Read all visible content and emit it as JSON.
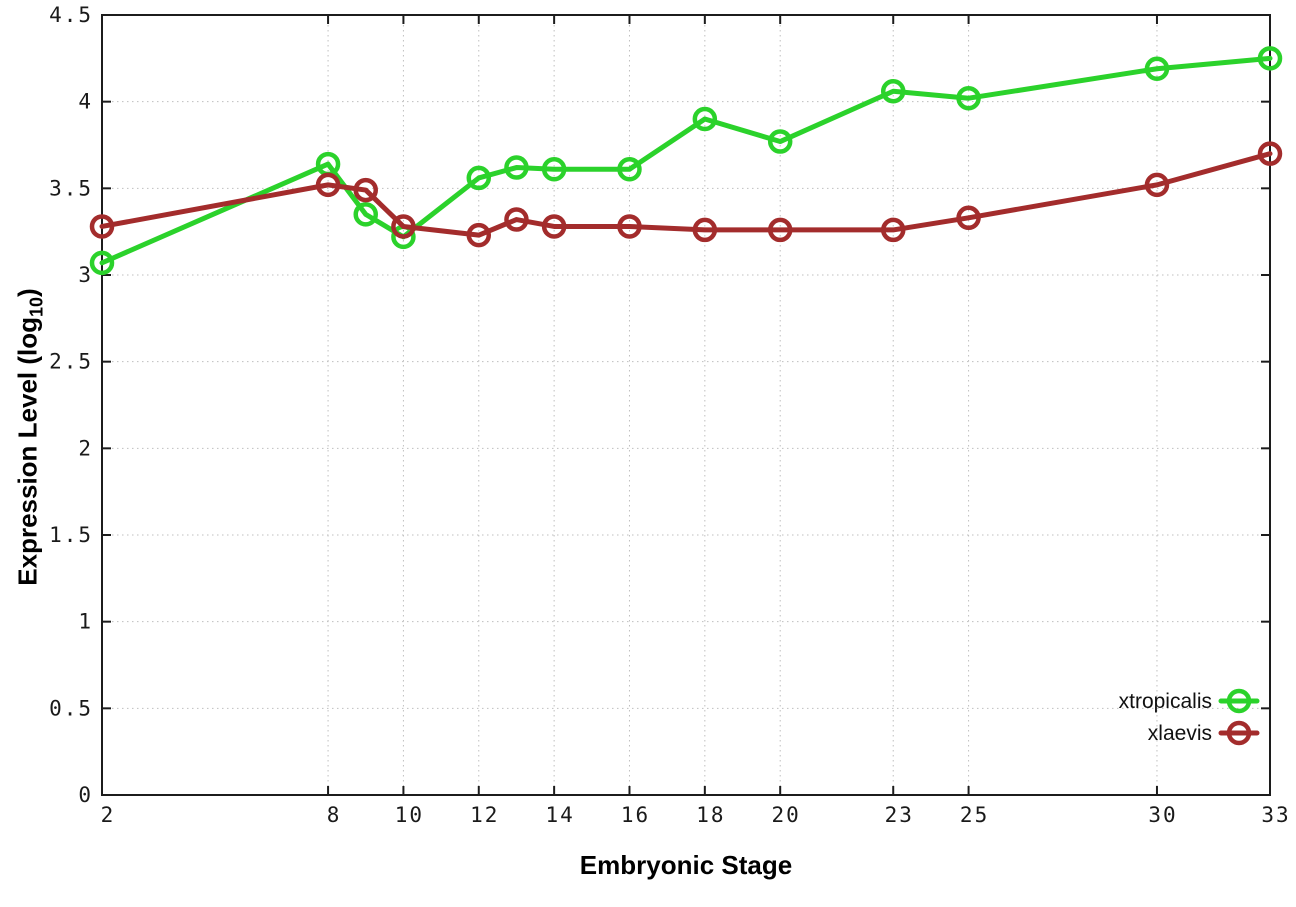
{
  "figure": {
    "xlabel": "Embryonic Stage",
    "ylabel_main": "Expression Level (log",
    "ylabel_sub": "10",
    "ylabel_end": ")"
  },
  "chart_data": {
    "type": "line",
    "title": "",
    "xlabel": "Embryonic Stage",
    "ylabel": "Expression Level (log10)",
    "x": [
      2,
      8,
      9,
      10,
      12,
      13,
      14,
      16,
      18,
      20,
      23,
      25,
      30,
      33
    ],
    "series": [
      {
        "name": "xtropicalis",
        "color": "#2bd22b",
        "marker": "open-circle",
        "values": [
          3.07,
          3.64,
          3.35,
          3.22,
          3.56,
          3.62,
          3.61,
          3.61,
          3.9,
          3.77,
          4.06,
          4.02,
          4.19,
          4.25
        ]
      },
      {
        "name": "xlaevis",
        "color": "#a32c2c",
        "marker": "open-circle",
        "values": [
          3.28,
          3.52,
          3.49,
          3.28,
          3.23,
          3.32,
          3.28,
          3.28,
          3.26,
          3.26,
          3.26,
          3.33,
          3.52,
          3.7
        ]
      }
    ],
    "x_ticks": [
      2,
      8,
      10,
      12,
      14,
      16,
      18,
      20,
      23,
      25,
      30,
      33
    ],
    "x_tick_labels": [
      "2",
      "8",
      "10",
      "12",
      "14",
      "16",
      "18",
      "20",
      "23",
      "25",
      "30",
      "33"
    ],
    "y_ticks": [
      0,
      0.5,
      1,
      1.5,
      2,
      2.5,
      3,
      3.5,
      4,
      4.5
    ],
    "y_tick_labels": [
      "0",
      "0.5",
      "1",
      "1.5",
      "2",
      "2.5",
      "3",
      "3.5",
      "4",
      "4.5"
    ],
    "xlim": [
      2,
      33
    ],
    "ylim": [
      0,
      4.5
    ],
    "grid": true,
    "grid_style": "dotted",
    "legend_position": "bottom-right",
    "background_color": "#ffffff",
    "border_color": "#1c1c1c",
    "grid_color": "#bfbfbf",
    "tick_label_color": "#1a1a1a"
  }
}
